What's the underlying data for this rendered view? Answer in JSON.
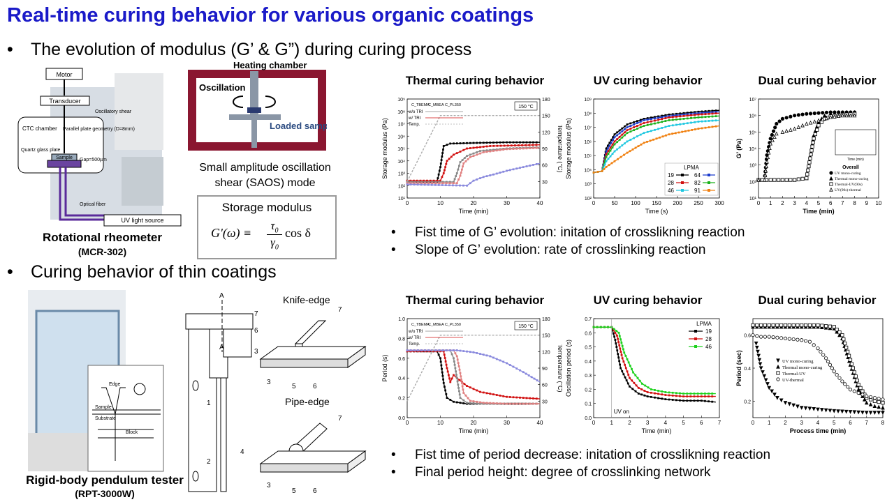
{
  "title": "Real-time curing behavior for various organic coatings",
  "section1": {
    "bullet": "The evolution of modulus (G’ & G”) during curing process",
    "rheometer": {
      "caption": "Rotational rheometer",
      "model": "(MCR-302)",
      "labels": {
        "motor": "Motor",
        "transducer": "Transducer",
        "osc_shear": "Oscillatory shear",
        "ctc": "CTC chamber",
        "parallel_plate": "Parallel plate geometry (D=8mm)",
        "quartz": "Quartz glass plate",
        "sample": "Sample",
        "gap": "Gap=500µm",
        "fiber": "Optical fiber",
        "uv_source": "UV light source"
      }
    },
    "saos": {
      "heating": "Heating chamber",
      "oscillation": "Oscillation",
      "loaded": "Loaded sample",
      "mode_line1": "Small amplitude oscillation",
      "mode_line2": "shear (SAOS) mode",
      "storage_title": "Storage modulus",
      "formula_lhs": "G'(ω) ≡",
      "formula_num": "τ",
      "formula_num_sub": "0",
      "formula_den": "γ",
      "formula_den_sub": "0",
      "formula_rhs": "cos δ"
    },
    "plots": {
      "thermal_title": "Thermal curing behavior",
      "uv_title": "UV curing behavior",
      "dual_title": "Dual curing behavior"
    },
    "notes": [
      "Fist time of G’ evolution: initation of crosslikning reaction",
      "Slope of G’ evolution: rate of crosslinking reaction"
    ]
  },
  "section2": {
    "bullet": "Curing behavior of thin coatings",
    "pendulum": {
      "caption": "Rigid-body pendulum tester",
      "model": "(RPT-3000W)",
      "labels": {
        "edge": "Edge",
        "sample": "Sample",
        "substrate": "Substrate",
        "block": "Block"
      }
    },
    "schematic": {
      "knife": "Knife-edge",
      "pipe": "Pipe-edge",
      "mark_a": "A",
      "nums": [
        "1",
        "2",
        "3",
        "4",
        "5",
        "6",
        "7"
      ]
    },
    "plots": {
      "thermal_title": "Thermal curing behavior",
      "uv_title": "UV curing behavior",
      "dual_title": "Dual curing behavior"
    },
    "notes": [
      "Fist time of period decrease: initation of crosslikning reaction",
      "Final period height: degree of crosslinking network"
    ]
  },
  "chart_data": [
    {
      "type": "line",
      "title": "Thermal curing behavior",
      "xlabel": "Time (min)",
      "ylabel": "Storage modulus (Pa)",
      "y2label": "Temperature (°C)",
      "xlim": [
        0,
        40
      ],
      "xticks": [
        "0",
        "10",
        "20",
        "30",
        "40"
      ],
      "ylim_log": [
        1,
        9
      ],
      "yticks": [
        "10¹",
        "10²",
        "10³",
        "10⁴",
        "10⁵",
        "10⁶",
        "10⁷",
        "10⁸",
        "10⁹"
      ],
      "y2ticks": [
        "30",
        "60",
        "90",
        "120",
        "150",
        "180"
      ],
      "annotation": "150 °C",
      "legend": {
        "rows": [
          "w/o TRI",
          "w/ TRI",
          "Temp."
        ],
        "cols": [
          "C_TBEMA",
          "C_MBEA",
          "C_PL350"
        ]
      },
      "series": [
        {
          "name": "w/ TRI C_TBEMA",
          "color": "#000000",
          "x": [
            0,
            9,
            10,
            11,
            13,
            20,
            30,
            40
          ],
          "logy": [
            2.3,
            2.3,
            3.5,
            5.2,
            5.4,
            5.45,
            5.5,
            5.5
          ]
        },
        {
          "name": "w/ TRI C_MBEA",
          "color": "#d11010",
          "x": [
            0,
            10,
            11,
            12,
            14,
            18,
            25,
            40
          ],
          "logy": [
            2.4,
            2.4,
            3.0,
            4.0,
            4.5,
            5.0,
            5.2,
            5.3
          ]
        },
        {
          "name": "w/o TRI C_TBEMA",
          "color": "#888888",
          "x": [
            0,
            14,
            15,
            16,
            18,
            22,
            30,
            40
          ],
          "logy": [
            2.3,
            2.3,
            3.0,
            3.9,
            4.4,
            4.8,
            5.0,
            5.1
          ]
        },
        {
          "name": "w/o TRI C_MBEA",
          "color": "#e08080",
          "x": [
            0,
            15,
            16,
            17,
            19,
            23,
            30,
            40
          ],
          "logy": [
            2.2,
            2.2,
            2.8,
            3.8,
            4.3,
            4.7,
            4.95,
            5.05
          ]
        },
        {
          "name": "w/o TRI C_PL350",
          "color": "#8888dd",
          "x": [
            0,
            18,
            20,
            23,
            26,
            30,
            35,
            40
          ],
          "logy": [
            2.1,
            2.0,
            2.4,
            2.7,
            2.9,
            3.2,
            3.5,
            3.8
          ]
        },
        {
          "name": "Temp.",
          "color": "#aaaaaa",
          "dashed": true,
          "x": [
            0,
            10,
            40
          ],
          "y2": [
            30,
            150,
            150
          ]
        }
      ]
    },
    {
      "type": "line",
      "title": "UV curing behavior",
      "xlabel": "Time (s)",
      "ylabel": "Storage modulus (Pa)",
      "xlim": [
        0,
        300
      ],
      "xticks": [
        "0",
        "50",
        "100",
        "150",
        "200",
        "250",
        "300"
      ],
      "ylim_log": [
        2,
        9
      ],
      "yticks": [
        "10²",
        "10³",
        "10⁴",
        "10⁵",
        "10⁶",
        "10⁷",
        "10⁸",
        "10⁹"
      ],
      "legend_title": "LPMA",
      "series": [
        {
          "name": "19",
          "color": "#000000",
          "x": [
            0,
            20,
            30,
            50,
            80,
            120,
            180,
            250,
            300
          ],
          "logy": [
            3.8,
            3.9,
            5.5,
            6.5,
            7.2,
            7.6,
            7.9,
            8.1,
            8.2
          ]
        },
        {
          "name": "64",
          "color": "#1c3ccc",
          "x": [
            0,
            20,
            30,
            50,
            80,
            120,
            180,
            250,
            300
          ],
          "logy": [
            3.8,
            3.9,
            5.3,
            6.3,
            7.0,
            7.5,
            7.8,
            8.0,
            8.1
          ]
        },
        {
          "name": "28",
          "color": "#d11010",
          "x": [
            0,
            20,
            30,
            50,
            80,
            120,
            180,
            250,
            300
          ],
          "logy": [
            3.8,
            3.9,
            5.1,
            6.0,
            6.8,
            7.3,
            7.7,
            7.9,
            8.0
          ]
        },
        {
          "name": "82",
          "color": "#1bb11b",
          "x": [
            0,
            20,
            30,
            50,
            80,
            120,
            180,
            250,
            300
          ],
          "logy": [
            3.8,
            3.9,
            4.9,
            5.8,
            6.6,
            7.1,
            7.5,
            7.7,
            7.8
          ]
        },
        {
          "name": "46",
          "color": "#20c8e0",
          "x": [
            0,
            20,
            30,
            50,
            80,
            120,
            180,
            250,
            300
          ],
          "logy": [
            3.8,
            3.9,
            4.6,
            5.3,
            6.0,
            6.6,
            7.1,
            7.4,
            7.5
          ]
        },
        {
          "name": "91",
          "color": "#f08010",
          "x": [
            0,
            20,
            30,
            50,
            80,
            120,
            180,
            250,
            300
          ],
          "logy": [
            3.8,
            3.9,
            4.2,
            4.6,
            5.2,
            5.9,
            6.5,
            6.9,
            7.1
          ]
        }
      ]
    },
    {
      "type": "scatter",
      "title": "Dual curing behavior",
      "xlabel": "Time (min)",
      "ylabel": "G’ (Pa)",
      "xlim": [
        0,
        10
      ],
      "xticks": [
        "0",
        "1",
        "2",
        "3",
        "4",
        "5",
        "6",
        "7",
        "8",
        "9",
        "10"
      ],
      "ylim_log": [
        1,
        7
      ],
      "yticks": [
        "10¹",
        "10²",
        "10³",
        "10⁴",
        "10⁵",
        "10⁶",
        "10⁷"
      ],
      "legend_title": "Overall",
      "inset_xlabel": "Time (min)",
      "series": [
        {
          "name": "UV mono-curing",
          "marker": "filled-circle",
          "x": [
            0,
            0.5,
            0.7,
            1.0,
            1.5,
            2,
            3,
            4,
            5,
            6,
            7,
            8
          ],
          "logy": [
            2.1,
            2.1,
            3.6,
            4.6,
            5.5,
            5.8,
            6.0,
            6.1,
            6.15,
            6.2,
            6.2,
            6.2
          ]
        },
        {
          "name": "Thermal mono-curing",
          "marker": "filled-triangle",
          "x": [
            0,
            3,
            4,
            4.3,
            4.6,
            5,
            5.5,
            6,
            7,
            8
          ],
          "logy": [
            2.1,
            2.1,
            2.2,
            3.5,
            4.8,
            5.6,
            6.0,
            6.1,
            6.15,
            6.2
          ]
        },
        {
          "name": "Thermal-UV(90s)",
          "marker": "open-square",
          "x": [
            0,
            3,
            4,
            4.3,
            4.6,
            5,
            5.5,
            6,
            7,
            8
          ],
          "logy": [
            2.1,
            2.1,
            2.2,
            3.4,
            4.6,
            5.4,
            5.8,
            5.95,
            6.05,
            6.1
          ]
        },
        {
          "name": "UV(90s)-thermal",
          "marker": "open-triangle",
          "x": [
            0,
            0.5,
            0.7,
            1,
            1.5,
            2,
            3,
            4,
            5,
            6,
            7,
            8
          ],
          "logy": [
            2.1,
            2.1,
            3.2,
            4.3,
            4.9,
            5.0,
            5.2,
            5.5,
            5.7,
            5.9,
            6.0,
            6.0
          ]
        }
      ]
    },
    {
      "type": "line",
      "title": "Thermal curing behavior",
      "xlabel": "Time (min)",
      "ylabel": "Period (s)",
      "y2label": "Temperature (°C)",
      "xlim": [
        0,
        40
      ],
      "xticks": [
        "0",
        "10",
        "20",
        "30",
        "40"
      ],
      "ylim": [
        0,
        1.0
      ],
      "yticks": [
        "0.0",
        "0.2",
        "0.4",
        "0.6",
        "0.8",
        "1.0"
      ],
      "y2ticks": [
        "30",
        "60",
        "90",
        "120",
        "150",
        "180"
      ],
      "annotation": "150 °C",
      "legend": {
        "rows": [
          "w/o TRI",
          "w/ TRI",
          "Temp."
        ],
        "cols": [
          "C_TBEMA",
          "C_MBEA",
          "C_PL350"
        ]
      },
      "series": [
        {
          "name": "w/ TRI C_TBEMA",
          "color": "#000000",
          "x": [
            0,
            9,
            10,
            11,
            12,
            14,
            18,
            25,
            40
          ],
          "y": [
            0.67,
            0.67,
            0.6,
            0.35,
            0.2,
            0.16,
            0.14,
            0.14,
            0.14
          ]
        },
        {
          "name": "w/ TRI C_MBEA",
          "color": "#d11010",
          "x": [
            0,
            11,
            12,
            13,
            14,
            15,
            18,
            22,
            30,
            40
          ],
          "y": [
            0.67,
            0.67,
            0.5,
            0.36,
            0.43,
            0.4,
            0.32,
            0.26,
            0.21,
            0.19
          ]
        },
        {
          "name": "w/o TRI C_TBEMA",
          "color": "#888888",
          "x": [
            0,
            13,
            14,
            15,
            16,
            18,
            22,
            30,
            40
          ],
          "y": [
            0.68,
            0.68,
            0.6,
            0.4,
            0.2,
            0.15,
            0.14,
            0.14,
            0.14
          ]
        },
        {
          "name": "w/o TRI C_MBEA",
          "color": "#e08080",
          "x": [
            0,
            14,
            15,
            16,
            17,
            19,
            23,
            30,
            40
          ],
          "y": [
            0.68,
            0.68,
            0.62,
            0.45,
            0.25,
            0.17,
            0.15,
            0.14,
            0.14
          ]
        },
        {
          "name": "w/o TRI C_PL350",
          "color": "#8888dd",
          "x": [
            0,
            15,
            20,
            25,
            30,
            35,
            40
          ],
          "y": [
            0.68,
            0.68,
            0.66,
            0.62,
            0.55,
            0.46,
            0.36
          ]
        },
        {
          "name": "Temp.",
          "color": "#aaaaaa",
          "dashed": true,
          "x": [
            0,
            10,
            40
          ],
          "y2": [
            30,
            150,
            150
          ]
        }
      ]
    },
    {
      "type": "line",
      "title": "UV curing behavior",
      "xlabel": "Time (min)",
      "ylabel": "Oscillation period (s)",
      "xlim": [
        0,
        7
      ],
      "xticks": [
        "0",
        "1",
        "2",
        "3",
        "4",
        "5",
        "6",
        "7"
      ],
      "ylim": [
        0,
        0.7
      ],
      "yticks": [
        "0.0",
        "0.1",
        "0.2",
        "0.3",
        "0.4",
        "0.5",
        "0.6",
        "0.7"
      ],
      "annotation": "UV on",
      "legend_title": "LPMA",
      "series": [
        {
          "name": "19",
          "color": "#000000",
          "x": [
            0,
            1,
            1.2,
            1.5,
            2,
            2.5,
            3,
            4,
            5,
            6,
            6.8
          ],
          "y": [
            0.64,
            0.64,
            0.55,
            0.35,
            0.22,
            0.17,
            0.15,
            0.13,
            0.12,
            0.12,
            0.11
          ]
        },
        {
          "name": "28",
          "color": "#d11010",
          "x": [
            0,
            1,
            1.3,
            1.6,
            2,
            2.5,
            3,
            4,
            5,
            6,
            6.8
          ],
          "y": [
            0.64,
            0.64,
            0.58,
            0.42,
            0.28,
            0.21,
            0.18,
            0.16,
            0.15,
            0.15,
            0.15
          ]
        },
        {
          "name": "46",
          "color": "#1bd11b",
          "x": [
            0,
            1,
            1.4,
            1.7,
            2.2,
            2.7,
            3.2,
            4,
            5,
            6,
            6.8
          ],
          "y": [
            0.64,
            0.64,
            0.6,
            0.46,
            0.32,
            0.24,
            0.2,
            0.18,
            0.17,
            0.17,
            0.17
          ]
        }
      ]
    },
    {
      "type": "scatter",
      "title": "Dual curing behavior",
      "xlabel": "Process time (min)",
      "ylabel": "Period (sec)",
      "xlim": [
        0,
        8
      ],
      "xticks": [
        "0",
        "1",
        "2",
        "3",
        "4",
        "5",
        "6",
        "7",
        "8"
      ],
      "ylim": [
        0.1,
        0.7
      ],
      "yticks": [
        "0.2",
        "0.4",
        "0.6"
      ],
      "series": [
        {
          "name": "UV mono-curing",
          "marker": "filled-triangle-down",
          "x": [
            0.2,
            0.5,
            1,
            1.5,
            2,
            3,
            4,
            5,
            6,
            7,
            8
          ],
          "y": [
            0.55,
            0.4,
            0.28,
            0.22,
            0.19,
            0.16,
            0.15,
            0.14,
            0.135,
            0.13,
            0.13
          ]
        },
        {
          "name": "Thermal mono-curing",
          "marker": "filled-triangle",
          "x": [
            0,
            1,
            2,
            3,
            4,
            5,
            5.5,
            6,
            6.5,
            7,
            7.5,
            8
          ],
          "y": [
            0.65,
            0.65,
            0.65,
            0.65,
            0.65,
            0.64,
            0.58,
            0.42,
            0.27,
            0.19,
            0.17,
            0.16
          ]
        },
        {
          "name": "Thermal-UV",
          "marker": "open-square",
          "x": [
            0,
            1,
            2,
            3,
            4,
            5,
            5.5,
            6,
            6.5,
            7,
            7.5,
            8
          ],
          "y": [
            0.66,
            0.66,
            0.66,
            0.66,
            0.66,
            0.65,
            0.6,
            0.45,
            0.3,
            0.22,
            0.2,
            0.19
          ]
        },
        {
          "name": "UV-thermal",
          "marker": "open-circle",
          "x": [
            0,
            0.5,
            1,
            2,
            3,
            3.5,
            4,
            4.5,
            5,
            5.5,
            6,
            7,
            8
          ],
          "y": [
            0.6,
            0.59,
            0.59,
            0.58,
            0.57,
            0.56,
            0.52,
            0.46,
            0.38,
            0.32,
            0.27,
            0.23,
            0.21
          ]
        }
      ]
    }
  ]
}
